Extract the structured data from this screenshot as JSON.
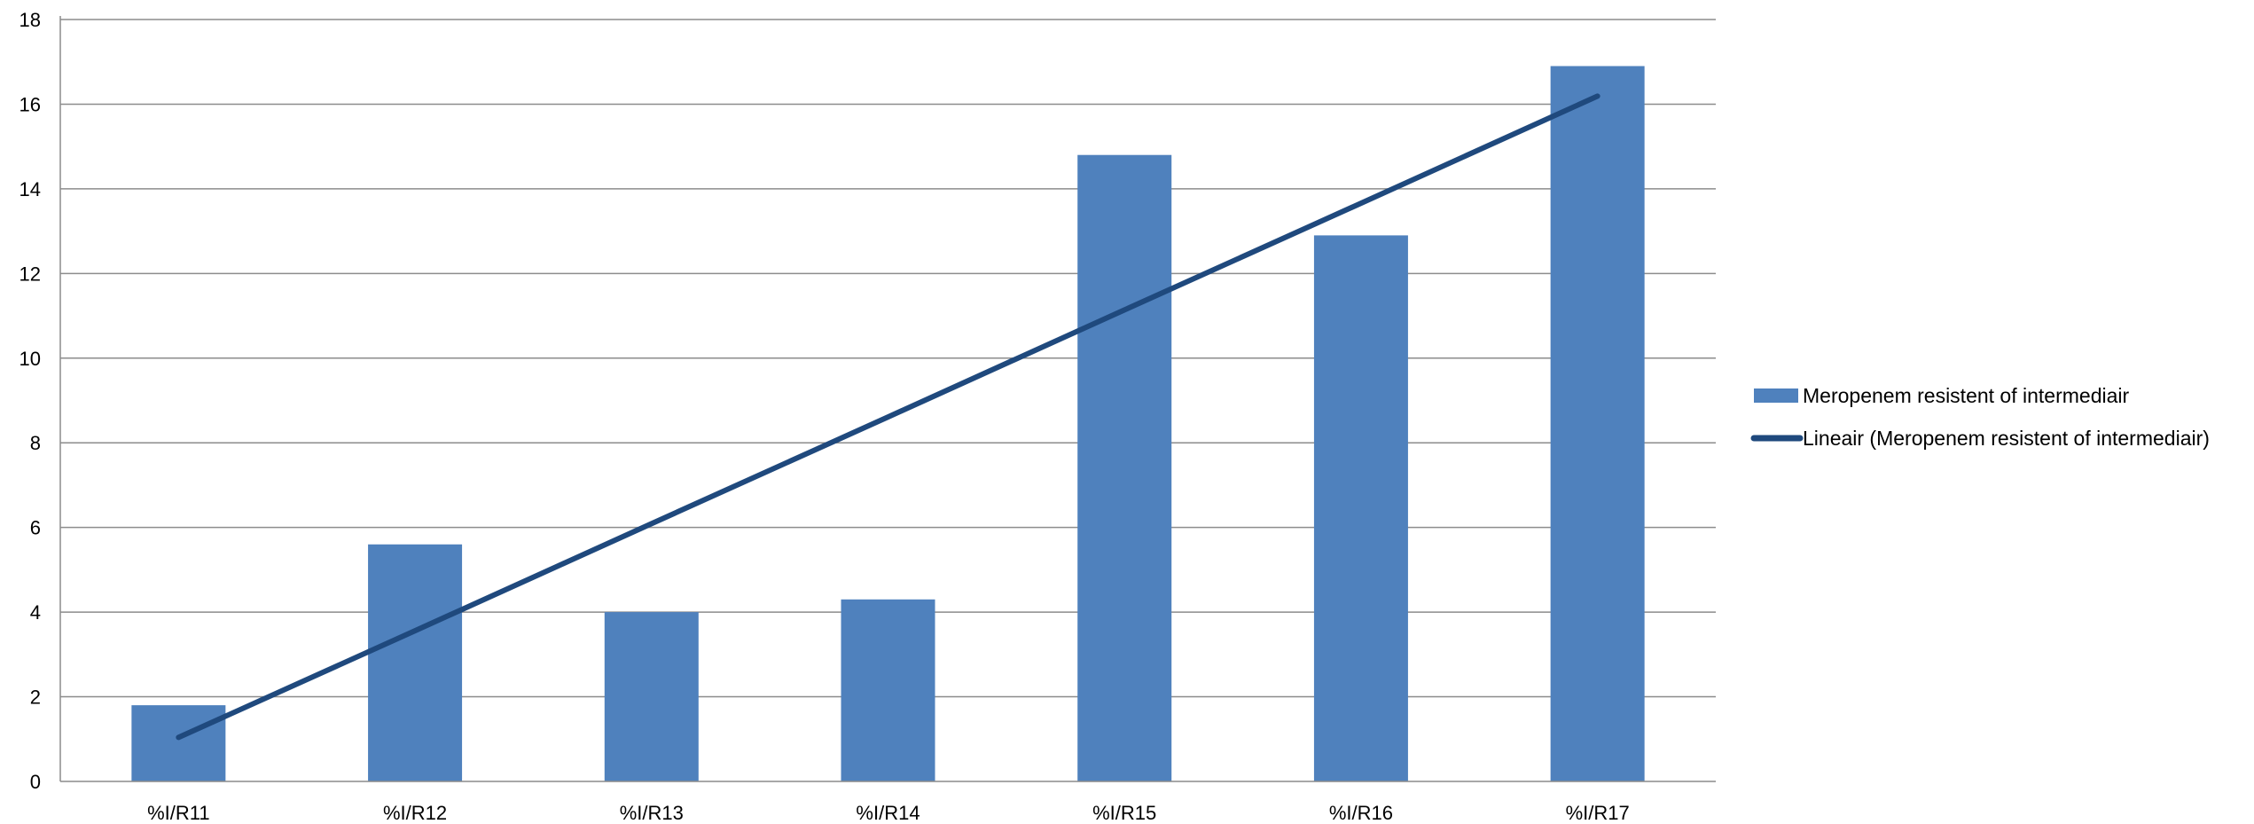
{
  "chart_data": {
    "type": "bar",
    "categories": [
      "%I/R11",
      "%I/R12",
      "%I/R13",
      "%I/R14",
      "%I/R15",
      "%I/R16",
      "%I/R17"
    ],
    "series": [
      {
        "name": "Meropenem resistent of intermediair",
        "type": "bar",
        "values": [
          1.8,
          5.6,
          4.0,
          4.3,
          14.8,
          12.9,
          16.9
        ],
        "color": "#4F81BD"
      },
      {
        "name": "Lineair (Meropenem resistent of intermediair)",
        "type": "line",
        "trendline": "linear",
        "values": [
          1.04,
          3.56,
          6.09,
          8.61,
          11.14,
          13.66,
          16.19
        ],
        "color": "#1F497D"
      }
    ],
    "yticks": [
      0,
      2,
      4,
      6,
      8,
      10,
      12,
      14,
      16,
      18
    ],
    "ylim": [
      0,
      18
    ],
    "grid": true,
    "legend_position": "right",
    "title": "",
    "xlabel": "",
    "ylabel": ""
  }
}
